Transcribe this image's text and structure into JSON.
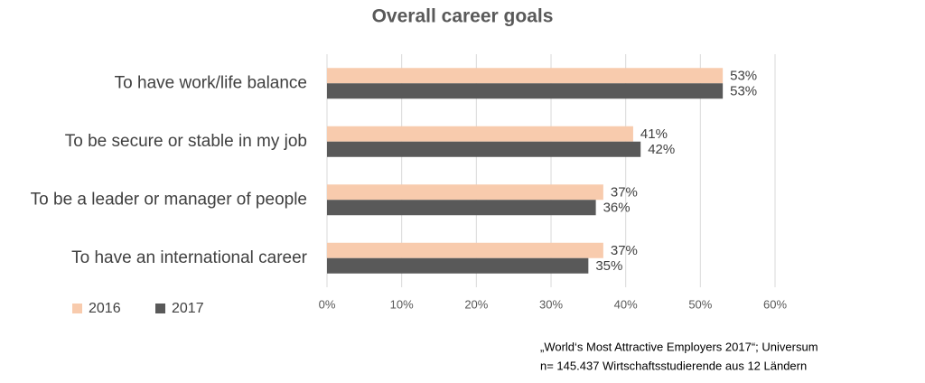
{
  "chart_data": {
    "type": "hbar",
    "title": "Overall career goals",
    "categories": [
      "To have work/life balance",
      "To be secure or stable in my job",
      "To be a leader or manager of people",
      "To have an international career"
    ],
    "series": [
      {
        "name": "2016",
        "color": "#f8cbad",
        "values": [
          53,
          41,
          37,
          37
        ],
        "value_labels": [
          "53%",
          "41%",
          "37%",
          "37%"
        ]
      },
      {
        "name": "2017",
        "color": "#595959",
        "values": [
          53,
          42,
          36,
          35
        ],
        "value_labels": [
          "53%",
          "42%",
          "36%",
          "35%"
        ]
      }
    ],
    "xlim": [
      0,
      60
    ],
    "xticks": [
      {
        "value": 0,
        "label": "0%"
      },
      {
        "value": 10,
        "label": "10%"
      },
      {
        "value": 20,
        "label": "20%"
      },
      {
        "value": 30,
        "label": "30%"
      },
      {
        "value": 40,
        "label": "40%"
      },
      {
        "value": 50,
        "label": "50%"
      },
      {
        "value": 60,
        "label": "60%"
      }
    ],
    "grid": true,
    "legend": "bottom-left",
    "source": [
      "„World‘s Most Attractive Employers 2017“; Universum",
      "n= 145.437 Wirtschaftsstudierende aus 12 Ländern"
    ]
  }
}
